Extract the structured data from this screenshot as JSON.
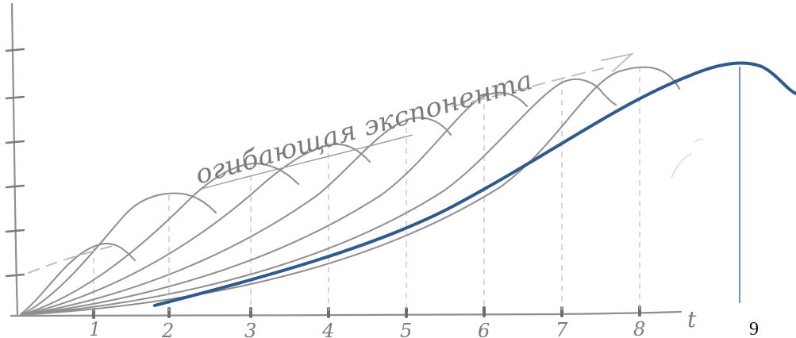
{
  "diagram": {
    "axis_label_t": "t",
    "x_tick_labels": [
      "1",
      "2",
      "3",
      "4",
      "5",
      "6",
      "7",
      "8"
    ],
    "extra_label": "9",
    "envelope_caption": "огибающая экспонента",
    "colors": {
      "pencil": "#8f8f8f",
      "pencil_dark": "#6e6e6e",
      "pencil_light": "#b9b9b9",
      "blue_curve": "#2f5a8c",
      "blue_line": "#4a7ab8"
    }
  }
}
